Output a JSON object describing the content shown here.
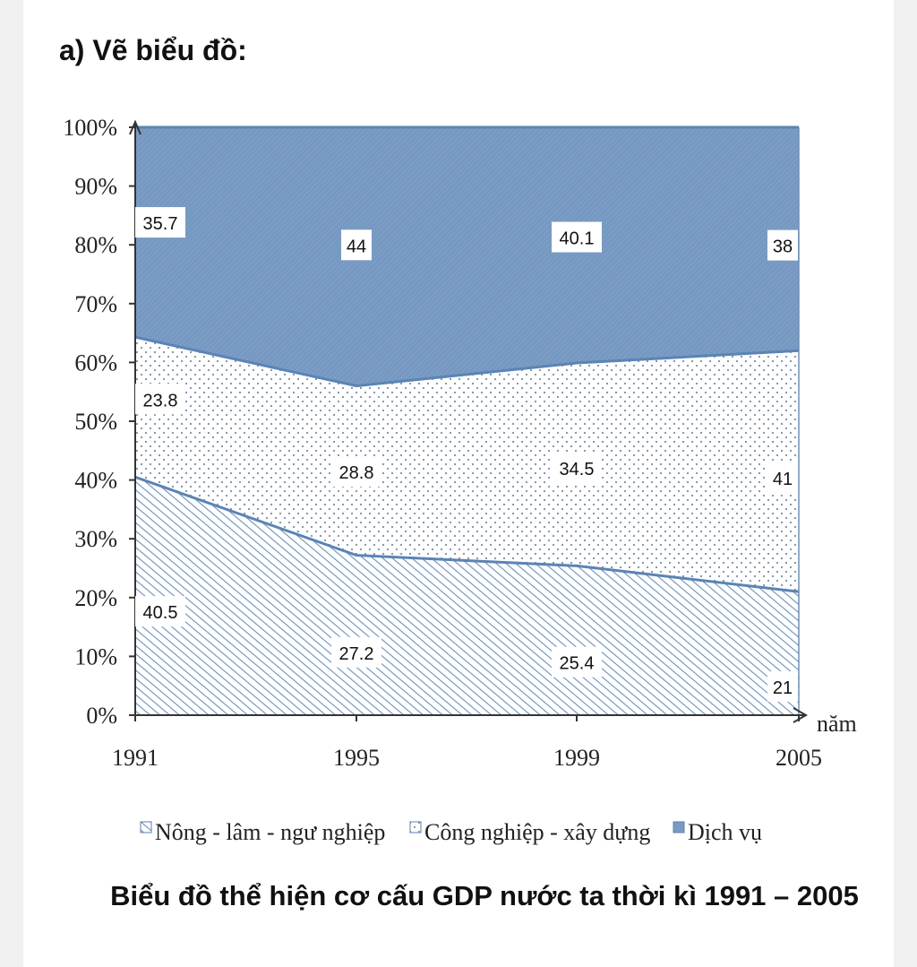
{
  "heading": "a) Vẽ biểu đồ:",
  "caption": "Biểu đồ thể hiện cơ cấu GDP nước ta thời kì 1991 – 2005",
  "chart_data": {
    "type": "area",
    "stacked": true,
    "title": "Biểu đồ thể hiện cơ cấu GDP nước ta thời kì 1991 – 2005",
    "categories": [
      "1991",
      "1995",
      "1999",
      "2005"
    ],
    "xlabel": "năm",
    "ylabel": "",
    "ylim": [
      0,
      100
    ],
    "yticks": [
      "0%",
      "10%",
      "20%",
      "30%",
      "40%",
      "50%",
      "60%",
      "70%",
      "80%",
      "90%",
      "100%"
    ],
    "series": [
      {
        "name": "Nông - lâm - ngư nghiệp",
        "values": [
          40.5,
          27.2,
          25.4,
          21
        ],
        "labels": [
          "40.5",
          "27.2",
          "25.4",
          "21"
        ],
        "pattern": "diagonal-hatch"
      },
      {
        "name": "Công nghiệp - xây dựng",
        "values": [
          23.8,
          28.8,
          34.5,
          41
        ],
        "labels": [
          "23.8",
          "28.8",
          "34.5",
          "41"
        ],
        "pattern": "dots"
      },
      {
        "name": "Dịch vụ",
        "values": [
          35.7,
          44,
          40.1,
          38
        ],
        "labels": [
          "35.7",
          "44",
          "40.1",
          "38"
        ],
        "pattern": "dense-shade"
      }
    ],
    "legend_position": "bottom",
    "colors": {
      "line": "#5a84b5",
      "axis": "#333333",
      "service_fill": "#7d9dc4"
    }
  }
}
